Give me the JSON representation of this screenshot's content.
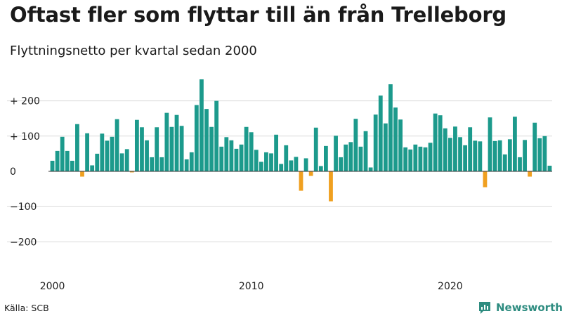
{
  "title": "Oftast fler som flyttar till än från Trelleborg",
  "subtitle": "Flyttningsnetto per kvartal sedan 2000",
  "source": "Källa: SCB",
  "brand": {
    "name": "Newsworthy",
    "icon": "newsworthy-logo-icon",
    "color": "#2e8c80"
  },
  "chart_data": {
    "type": "bar",
    "xlabel": "",
    "ylabel": "",
    "ylim": [
      -290,
      290
    ],
    "yticks": [
      200,
      100,
      0,
      -100,
      -200
    ],
    "ytick_labels": [
      "+ 200",
      "+ 100",
      "0",
      "−100",
      "−200"
    ],
    "xticks": [
      2000,
      2010,
      2020
    ],
    "xtick_labels": [
      "2000",
      "2010",
      "2020"
    ],
    "grid": true,
    "colors": {
      "positive": "#1c9a8c",
      "negative": "#f0a020",
      "grid": "#d9d9d9",
      "zero": "#333333"
    },
    "start": "2000 Q1",
    "values": [
      30,
      58,
      98,
      58,
      30,
      134,
      -15,
      108,
      17,
      50,
      107,
      87,
      98,
      148,
      51,
      63,
      -3,
      146,
      125,
      88,
      40,
      125,
      40,
      166,
      126,
      160,
      129,
      34,
      54,
      188,
      261,
      177,
      126,
      200,
      70,
      97,
      88,
      64,
      76,
      126,
      111,
      61,
      27,
      54,
      51,
      104,
      21,
      74,
      31,
      41,
      -55,
      37,
      -13,
      124,
      15,
      72,
      -85,
      101,
      40,
      76,
      83,
      149,
      70,
      114,
      11,
      161,
      215,
      136,
      247,
      181,
      147,
      68,
      62,
      76,
      70,
      68,
      81,
      164,
      159,
      122,
      95,
      127,
      97,
      74,
      125,
      87,
      85,
      -45,
      153,
      86,
      88,
      48,
      91,
      155,
      40,
      89,
      -15,
      138,
      94,
      100,
      16
    ]
  }
}
